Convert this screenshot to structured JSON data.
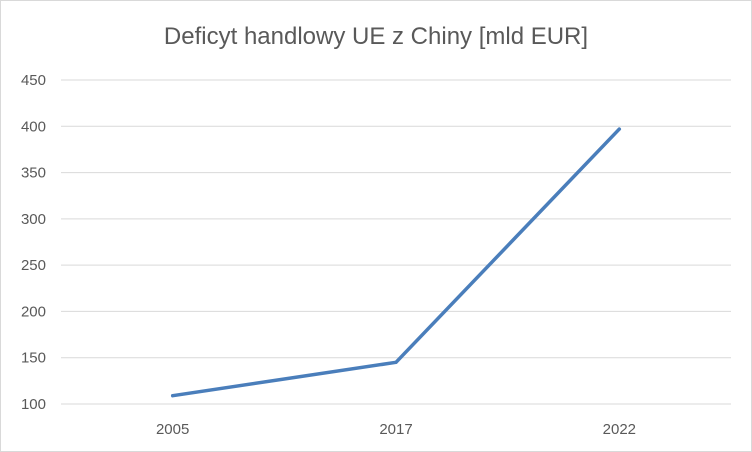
{
  "chart_data": {
    "type": "line",
    "title": "Deficyt handlowy UE z Chiny [mld EUR]",
    "categories": [
      "2005",
      "2017",
      "2022"
    ],
    "series": [
      {
        "values": [
          109,
          145,
          397
        ],
        "color": "#4a7ebb"
      }
    ],
    "ylim": [
      100,
      450
    ],
    "y_ticks": [
      100,
      150,
      200,
      250,
      300,
      350,
      400,
      450
    ],
    "grid": true,
    "legend": "none",
    "gridline_color": "#d9d9d9",
    "tick_label_color": "#595959"
  }
}
